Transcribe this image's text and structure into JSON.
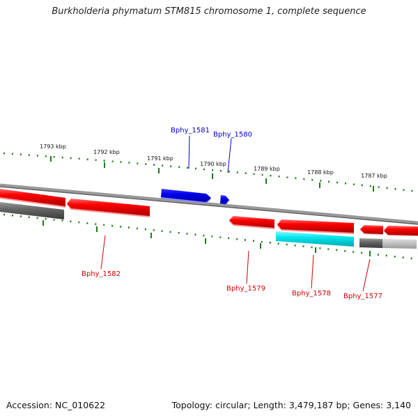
{
  "title": "Burkholderia phymatum STM815 chromosome 1, complete sequence",
  "footer": {
    "accession": "Accession: NC_010622",
    "summary": "Topology: circular; Length: 3,479,187 bp; Genes: 3,140"
  },
  "ruler": {
    "labels": [
      "1793 kbp",
      "1792 kbp",
      "1791 kbp",
      "1790 kbp",
      "1789 kbp",
      "1788 kbp",
      "1787 kbp"
    ]
  },
  "genes": [
    {
      "name": "Bphy_1581",
      "color": "#0000cc"
    },
    {
      "name": "Bphy_1580",
      "color": "#0000cc"
    },
    {
      "name": "Bphy_1582",
      "color": "#cc0000"
    },
    {
      "name": "Bphy_1579",
      "color": "#cc0000"
    },
    {
      "name": "Bphy_1578",
      "color": "#cc0000"
    },
    {
      "name": "Bphy_1577",
      "color": "#cc0000"
    }
  ],
  "colors": {
    "forward_gene": "#0000ee",
    "reverse_gene": "#ff1111",
    "rna_gene": "#00e5ee",
    "other_feature": "#666666",
    "ruler_ticks": "#1a7a1a",
    "backbone": "#888888"
  }
}
